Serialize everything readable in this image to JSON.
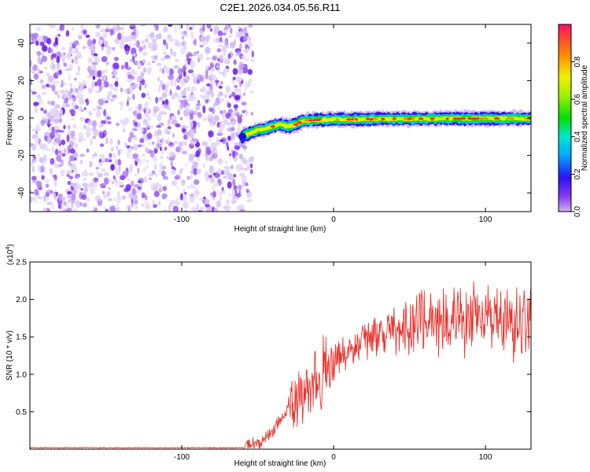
{
  "title": "C2E1.2026.034.05.56.R11",
  "chart_data": [
    {
      "type": "heatmap",
      "name": "spectrogram",
      "xlabel": "Height of straight line (km)",
      "ylabel": "Frequency (Hz)",
      "xlim": [
        -200,
        130
      ],
      "ylim": [
        -50,
        50
      ],
      "xticks": [
        -100,
        0,
        100
      ],
      "yticks": [
        -40,
        -20,
        0,
        20,
        40
      ],
      "noise_region_x": [
        -200,
        -58
      ],
      "ridge": {
        "x": [
          -60,
          -55,
          -50,
          -45,
          -40,
          -35,
          -30,
          -25,
          -20,
          -15,
          -10,
          -5,
          0,
          10,
          20,
          40,
          60,
          80,
          100,
          120,
          130
        ],
        "y": [
          -10,
          -8,
          -6.5,
          -6,
          -4.5,
          -3.5,
          -4.5,
          -3.5,
          -1.5,
          -1.2,
          -1.0,
          -1.0,
          -0.8,
          -0.8,
          -0.6,
          -0.5,
          -0.4,
          -0.3,
          -0.3,
          -0.3,
          -0.3
        ]
      },
      "colorbar": {
        "label": "Normalized spectral amplitude",
        "range": [
          0,
          1
        ],
        "ticks": [
          0.0,
          0.2,
          0.4,
          0.6,
          0.8
        ]
      }
    },
    {
      "type": "line",
      "name": "snr",
      "xlabel": "Height of straight line (km)",
      "ylabel": "SNR (10 * v/v)",
      "multiplier": "(x10",
      "multiplier_exp": "4",
      "xlim": [
        -200,
        130
      ],
      "ylim": [
        0,
        2.5
      ],
      "xticks": [
        -100,
        0,
        100
      ],
      "yticks": [
        0.5,
        1.0,
        1.5,
        2.0,
        2.5
      ],
      "color": "#e8352f",
      "trend": {
        "x": [
          -200,
          -60,
          -50,
          -45,
          -40,
          -35,
          -30,
          -25,
          -20,
          -15,
          -10,
          -5,
          0,
          5,
          10,
          15,
          20,
          30,
          40,
          50,
          60,
          70,
          80,
          90,
          100,
          110,
          120,
          130
        ],
        "y": [
          0.02,
          0.02,
          0.05,
          0.15,
          0.25,
          0.4,
          0.55,
          0.65,
          0.75,
          0.85,
          0.95,
          1.05,
          1.15,
          1.22,
          1.3,
          1.38,
          1.45,
          1.55,
          1.62,
          1.68,
          1.72,
          1.7,
          1.72,
          1.75,
          1.78,
          1.72,
          1.68,
          1.7
        ]
      }
    }
  ]
}
